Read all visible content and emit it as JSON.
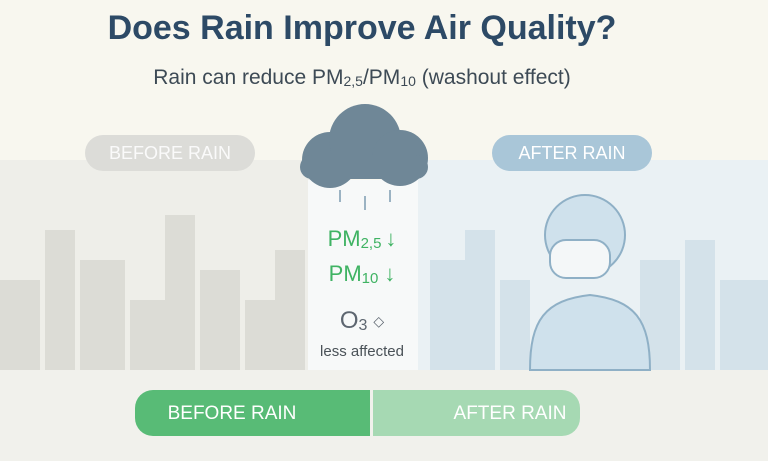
{
  "title": "Does Rain Improve Air Quality?",
  "subtitle": {
    "lead": "Rain can reduce PM",
    "sub1": "2,5",
    "mid": "/PM",
    "sub2": "10",
    "tail": " (washout effect)"
  },
  "labels": {
    "before": "BEFORE RAIN",
    "after": "AFTER RAIN"
  },
  "pollutants": [
    {
      "name": "PM",
      "sub": "2,5",
      "mark": "↓"
    },
    {
      "name": "PM",
      "sub": "10",
      "mark": "↓"
    },
    {
      "name": "O",
      "sub": "3",
      "mark": "◇",
      "note": "less affected"
    }
  ],
  "bottom_bar": {
    "left": "BEFORE RAIN",
    "right": "AFTER RAIN"
  }
}
